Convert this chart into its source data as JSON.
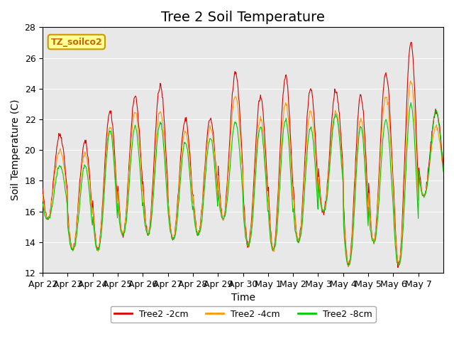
{
  "title": "Tree 2 Soil Temperature",
  "xlabel": "Time",
  "ylabel": "Soil Temperature (C)",
  "ylim": [
    12,
    28
  ],
  "yticks": [
    12,
    14,
    16,
    18,
    20,
    22,
    24,
    26,
    28
  ],
  "x_labels": [
    "Apr 22",
    "Apr 23",
    "Apr 24",
    "Apr 25",
    "Apr 26",
    "Apr 27",
    "Apr 28",
    "Apr 29",
    "Apr 30",
    "May 1",
    "May 2",
    "May 3",
    "May 4",
    "May 5",
    "May 6",
    "May 7"
  ],
  "legend_label": "TZ_soilco2",
  "line1_label": "Tree2 -2cm",
  "line2_label": "Tree2 -4cm",
  "line3_label": "Tree2 -8cm",
  "color1": "#dd0000",
  "color2": "#ff9900",
  "color3": "#00cc00",
  "bg_color": "#e8e8e8",
  "legend_box_color": "#ffff99",
  "legend_box_edge": "#cc9900",
  "title_fontsize": 14,
  "label_fontsize": 10,
  "tick_fontsize": 9
}
